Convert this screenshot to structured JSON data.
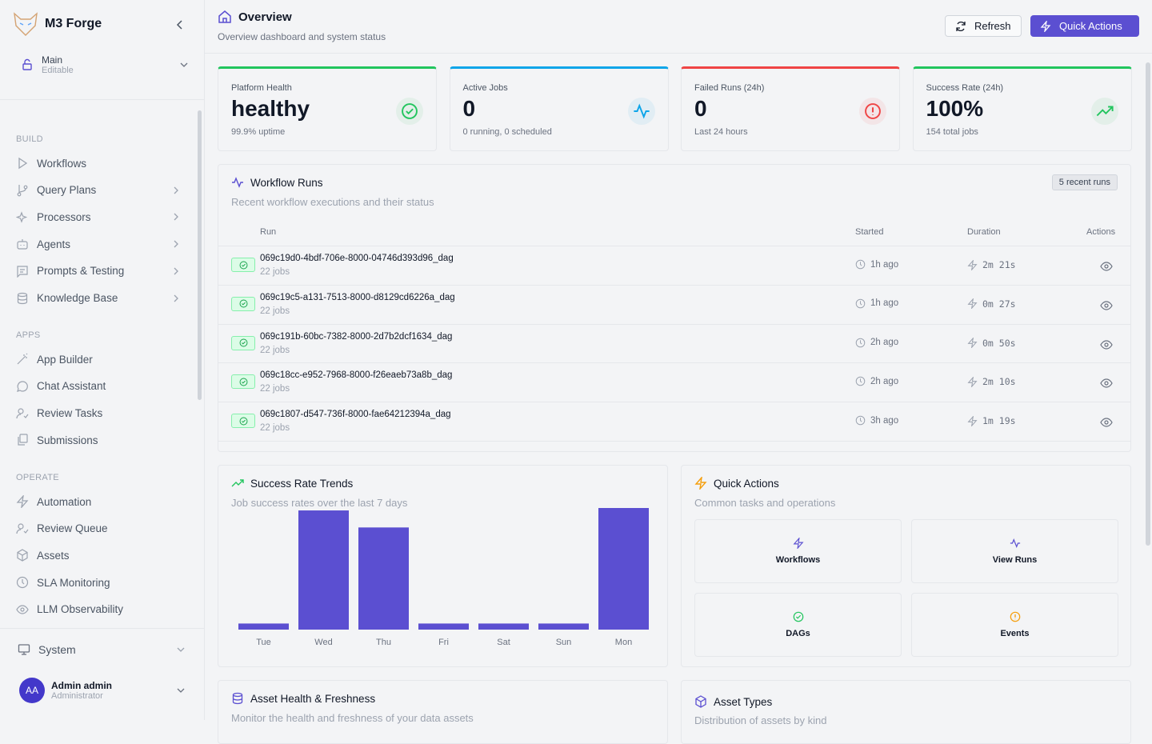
{
  "brand": {
    "name": "M3 Forge"
  },
  "workspace": {
    "name": "Main",
    "mode": "Editable"
  },
  "sidebar": {
    "sections": [
      {
        "title": "BUILD",
        "items": [
          {
            "label": "Workflows",
            "icon": "play-icon",
            "chevron": false
          },
          {
            "label": "Query Plans",
            "icon": "git-branch-icon",
            "chevron": true
          },
          {
            "label": "Processors",
            "icon": "sparkles-icon",
            "chevron": true
          },
          {
            "label": "Agents",
            "icon": "bot-icon",
            "chevron": true
          },
          {
            "label": "Prompts & Testing",
            "icon": "message-square-icon",
            "chevron": true
          },
          {
            "label": "Knowledge Base",
            "icon": "database-icon",
            "chevron": true
          }
        ]
      },
      {
        "title": "APPS",
        "items": [
          {
            "label": "App Builder",
            "icon": "wand-icon"
          },
          {
            "label": "Chat Assistant",
            "icon": "chat-icon"
          },
          {
            "label": "Review Tasks",
            "icon": "user-check-icon"
          },
          {
            "label": "Submissions",
            "icon": "files-icon"
          }
        ]
      },
      {
        "title": "OPERATE",
        "items": [
          {
            "label": "Automation",
            "icon": "zap-icon"
          },
          {
            "label": "Review Queue",
            "icon": "user-check-icon"
          },
          {
            "label": "Assets",
            "icon": "package-icon"
          },
          {
            "label": "SLA Monitoring",
            "icon": "clock-icon"
          },
          {
            "label": "LLM Observability",
            "icon": "eye-icon"
          }
        ]
      }
    ],
    "system": "System",
    "user": {
      "initials": "AA",
      "name": "Admin admin",
      "role": "Administrator"
    }
  },
  "header": {
    "title": "Overview",
    "subtitle": "Overview dashboard and system status",
    "refresh": "Refresh",
    "quick_actions": "Quick Actions"
  },
  "stats": [
    {
      "label": "Platform Health",
      "value": "healthy",
      "sub": "99.9% uptime",
      "color": "#22c55e",
      "icon": "check-circle-icon"
    },
    {
      "label": "Active Jobs",
      "value": "0",
      "sub": "0 running, 0 scheduled",
      "color": "#0ea5e9",
      "icon": "activity-icon"
    },
    {
      "label": "Failed Runs (24h)",
      "value": "0",
      "sub": "Last 24 hours",
      "color": "#ef4444",
      "icon": "alert-circle-icon"
    },
    {
      "label": "Success Rate (24h)",
      "value": "100%",
      "sub": "154 total jobs",
      "color": "#22c55e",
      "icon": "trending-up-icon"
    }
  ],
  "runs": {
    "title": "Workflow Runs",
    "subtitle": "Recent workflow executions and their status",
    "badge": "5 recent runs",
    "columns": {
      "run": "Run",
      "started": "Started",
      "duration": "Duration",
      "actions": "Actions"
    },
    "rows": [
      {
        "id": "069c19d0-4bdf-706e-8000-04746d393d96_dag",
        "jobs": "22 jobs",
        "started": "1h ago",
        "duration": "2m 21s",
        "status": "success"
      },
      {
        "id": "069c19c5-a131-7513-8000-d8129cd6226a_dag",
        "jobs": "22 jobs",
        "started": "1h ago",
        "duration": "0m 27s",
        "status": "success"
      },
      {
        "id": "069c191b-60bc-7382-8000-2d7b2dcf1634_dag",
        "jobs": "22 jobs",
        "started": "2h ago",
        "duration": "0m 50s",
        "status": "success"
      },
      {
        "id": "069c18cc-e952-7968-8000-f26eaeb73a8b_dag",
        "jobs": "22 jobs",
        "started": "2h ago",
        "duration": "2m 10s",
        "status": "success"
      },
      {
        "id": "069c1807-d547-736f-8000-fae64212394a_dag",
        "jobs": "22 jobs",
        "started": "3h ago",
        "duration": "1m 19s",
        "status": "success"
      }
    ]
  },
  "trends": {
    "title": "Success Rate Trends",
    "subtitle": "Job success rates over the last 7 days"
  },
  "chart_data": {
    "type": "bar",
    "categories": [
      "Tue",
      "Wed",
      "Thu",
      "Fri",
      "Sat",
      "Sun",
      "Mon"
    ],
    "values": [
      5,
      98,
      84,
      5,
      5,
      5,
      100
    ],
    "ylim": [
      0,
      100
    ],
    "grid": false,
    "color": "#5b4fd1"
  },
  "quick": {
    "title": "Quick Actions",
    "subtitle": "Common tasks and operations",
    "items": [
      {
        "label": "Workflows",
        "icon": "zap-icon",
        "color": "#5b4fd1"
      },
      {
        "label": "View Runs",
        "icon": "activity-icon",
        "color": "#5b4fd1"
      },
      {
        "label": "DAGs",
        "icon": "check-circle-icon",
        "color": "#22c55e"
      },
      {
        "label": "Events",
        "icon": "alert-circle-icon",
        "color": "#f59e0b"
      }
    ]
  },
  "asset_health": {
    "title": "Asset Health & Freshness",
    "subtitle": "Monitor the health and freshness of your data assets"
  },
  "asset_types": {
    "title": "Asset Types",
    "subtitle": "Distribution of assets by kind"
  }
}
